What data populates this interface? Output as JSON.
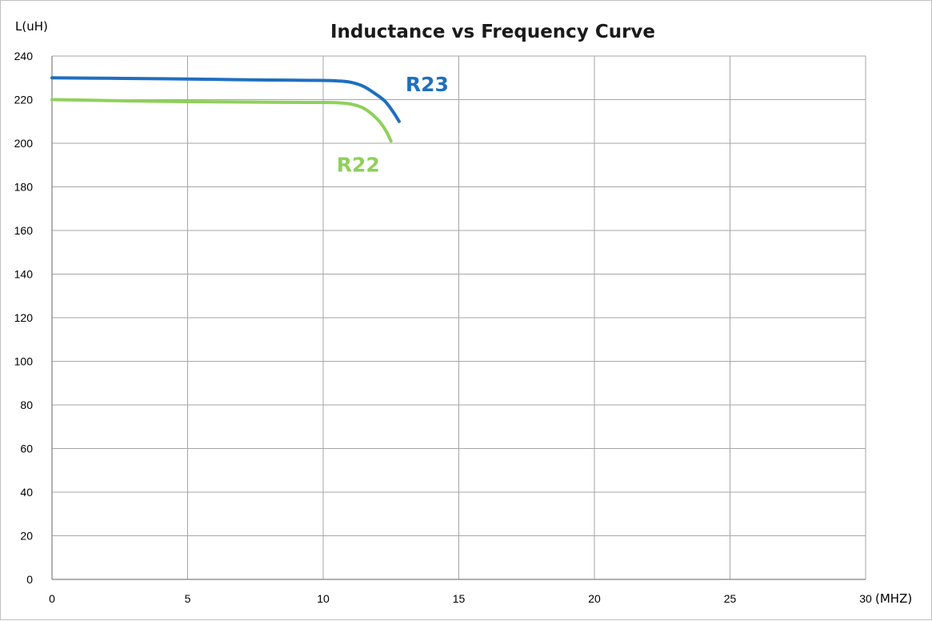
{
  "chart_data": {
    "type": "line",
    "title": "Inductance vs Frequency Curve",
    "ylabel": "L(uH)",
    "xlabel": "(MHZ)",
    "xlim": [
      0,
      30
    ],
    "ylim": [
      0,
      240
    ],
    "xticks": [
      0,
      5,
      10,
      15,
      20,
      25,
      30
    ],
    "yticks": [
      0,
      20,
      40,
      60,
      80,
      100,
      120,
      140,
      160,
      180,
      200,
      220,
      240
    ],
    "grid": true,
    "series": [
      {
        "name": "R23",
        "color": "#1f6fbf",
        "x": [
          0,
          2,
          4,
          6,
          8,
          10,
          10.5,
          11,
          11.5,
          12,
          12.3,
          12.6,
          12.8
        ],
        "y": [
          230,
          229.8,
          229.6,
          229.3,
          229,
          228.8,
          228.6,
          228,
          226,
          222,
          219,
          214,
          210
        ]
      },
      {
        "name": "R22",
        "color": "#8fd05a",
        "x": [
          0,
          2,
          4,
          6,
          8,
          10,
          10.5,
          11,
          11.5,
          12,
          12.3,
          12.5
        ],
        "y": [
          220,
          219.6,
          219.2,
          219,
          218.8,
          218.7,
          218.6,
          218,
          216,
          211,
          206,
          201
        ]
      }
    ]
  }
}
